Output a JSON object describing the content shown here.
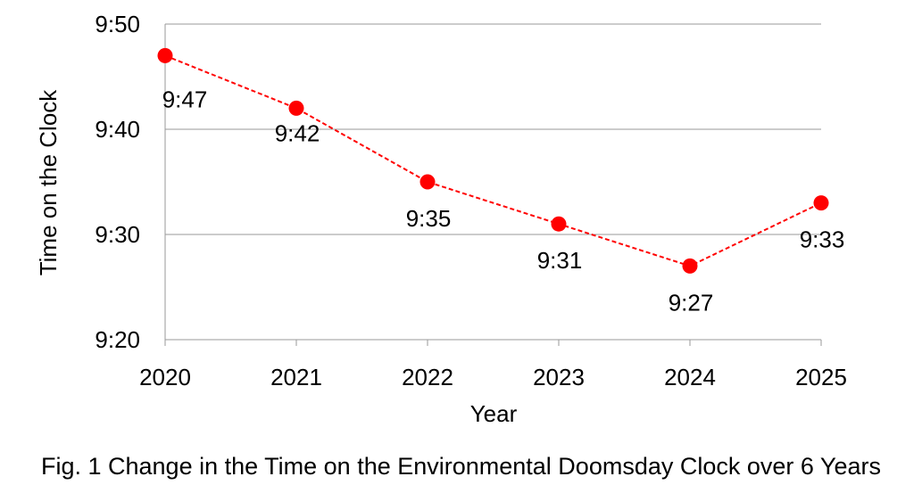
{
  "caption": "Fig. 1 Change in the Time on the Environmental Doomsday Clock over 6 Years",
  "colors": {
    "series": "#ff0000",
    "grid": "#9a9a9a",
    "axis": "#9a9a9a"
  },
  "chart_data": {
    "type": "line",
    "title": "",
    "xlabel": "Year",
    "ylabel": "Time on the Clock",
    "categories": [
      "2020",
      "2021",
      "2022",
      "2023",
      "2024",
      "2025"
    ],
    "series": [
      {
        "values": [
          "9:47",
          "9:42",
          "9:35",
          "9:31",
          "9:27",
          "9:33"
        ],
        "labels": [
          "9:47",
          "9:42",
          "9:35",
          "9:31",
          "9:27",
          "9:33"
        ],
        "line_style": "dashed",
        "marker": "circle"
      }
    ],
    "ylim": [
      "9:20",
      "9:50"
    ],
    "yticks": [
      "9:20",
      "9:30",
      "9:40",
      "9:50"
    ],
    "grid": true,
    "legend": "none"
  }
}
